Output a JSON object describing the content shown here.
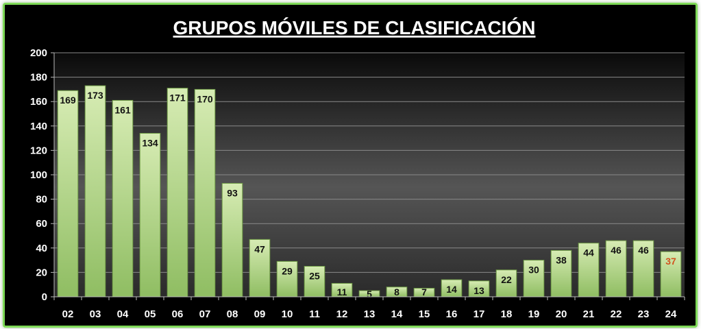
{
  "chart_data": {
    "type": "bar",
    "title": "GRUPOS MÓVILES DE CLASIFICACIÓN",
    "xlabel": "",
    "ylabel": "",
    "ylim": [
      0,
      200
    ],
    "yticks": [
      0,
      20,
      40,
      60,
      80,
      100,
      120,
      140,
      160,
      180,
      200
    ],
    "grid": true,
    "legend": "none",
    "categories": [
      "02",
      "03",
      "04",
      "05",
      "06",
      "07",
      "08",
      "09",
      "10",
      "11",
      "12",
      "13",
      "14",
      "15",
      "16",
      "17",
      "18",
      "19",
      "20",
      "21",
      "22",
      "23",
      "24"
    ],
    "values": [
      169,
      173,
      161,
      134,
      171,
      170,
      93,
      47,
      29,
      25,
      11,
      5,
      8,
      7,
      14,
      13,
      22,
      30,
      38,
      44,
      46,
      46,
      37
    ],
    "colors": {
      "bar_top": "#d7ecb4",
      "bar_bottom": "#8fbd62",
      "bar_stroke": "#6e9a45",
      "label": "#111111",
      "highlight_label": "#d2531e",
      "frame": "#7ed957"
    },
    "highlight_last_label": true
  }
}
